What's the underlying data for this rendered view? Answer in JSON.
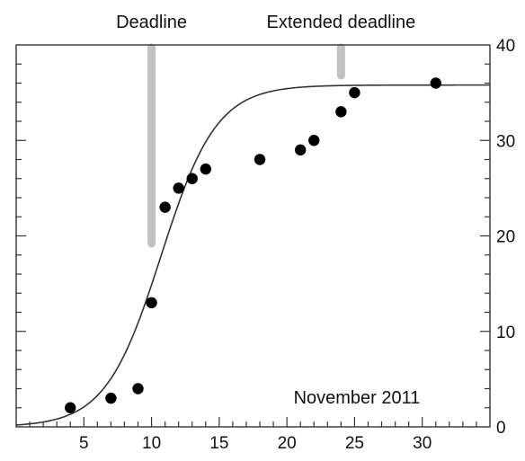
{
  "chart_data": {
    "type": "scatter",
    "title": "",
    "xlabel": "",
    "ylabel": "",
    "xlim": [
      0,
      35
    ],
    "ylim": [
      0,
      40
    ],
    "x_ticks": [
      5,
      10,
      15,
      20,
      25,
      30
    ],
    "x_tick_labels": [
      "5",
      "10",
      "15",
      "20",
      "25",
      "30"
    ],
    "x_minor_tick_step": 1,
    "y_ticks": [
      0,
      10,
      20,
      30,
      40
    ],
    "y_tick_labels": [
      "0",
      "10",
      "20",
      "30",
      "40"
    ],
    "y_minor_tick_step": 2,
    "y_axis_side": "right",
    "grid": false,
    "legend": "none",
    "points": [
      {
        "x": 4,
        "y": 2
      },
      {
        "x": 7,
        "y": 3
      },
      {
        "x": 9,
        "y": 4
      },
      {
        "x": 10,
        "y": 13
      },
      {
        "x": 11,
        "y": 23
      },
      {
        "x": 12,
        "y": 25
      },
      {
        "x": 13,
        "y": 26
      },
      {
        "x": 14,
        "y": 27
      },
      {
        "x": 18,
        "y": 28
      },
      {
        "x": 21,
        "y": 29
      },
      {
        "x": 22,
        "y": 30
      },
      {
        "x": 24,
        "y": 33
      },
      {
        "x": 25,
        "y": 35
      },
      {
        "x": 31,
        "y": 36
      }
    ],
    "fit_curve": {
      "form": "logistic",
      "asymptote": 35.8,
      "midpoint_x": 10.7,
      "scale": 2.05
    },
    "markers": [
      {
        "label": "Deadline",
        "x": 10,
        "y_from": 19.2,
        "y_to": 40
      },
      {
        "label": "Extended deadline",
        "x": 24,
        "y_from": 36.8,
        "y_to": 40
      }
    ],
    "annotations": {
      "period": "November 2011"
    },
    "colors": {
      "points": "#000000",
      "curve": "#333333",
      "markers": "#c2c2c2",
      "axes": "#333333"
    }
  }
}
